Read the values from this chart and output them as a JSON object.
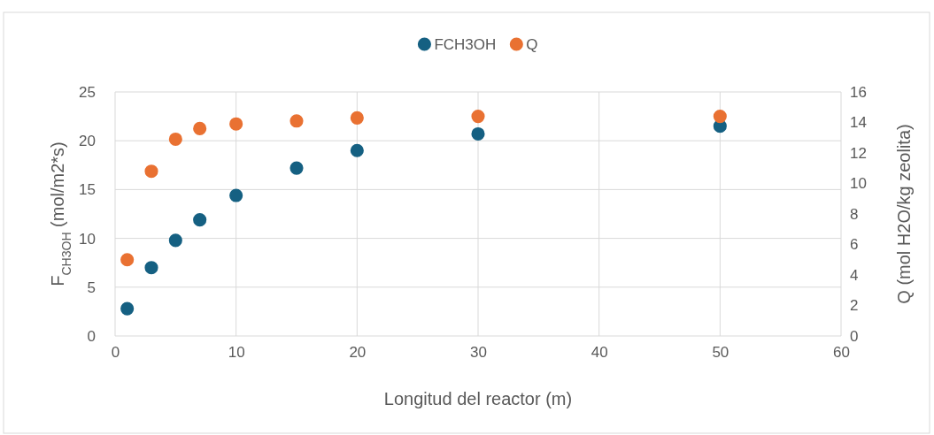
{
  "chart_data": {
    "type": "scatter",
    "xlabel": "Longitud del reactor (m)",
    "ylabel": "F$_{CH3OH}$ (mol/m2*s)",
    "y2label": "Q (mol H2O/kg zeolita)",
    "x": [
      1,
      3,
      5,
      7,
      10,
      15,
      20,
      30,
      50
    ],
    "series": [
      {
        "name": "FCH3OH",
        "color": "#156082",
        "values": [
          2.8,
          7.0,
          9.8,
          11.9,
          14.4,
          17.2,
          19.0,
          20.7,
          21.5
        ]
      },
      {
        "name": "Q",
        "color": "#e97132",
        "axis": "y2",
        "values": [
          5.0,
          10.8,
          12.9,
          13.6,
          13.9,
          14.1,
          14.3,
          14.4,
          14.4
        ]
      }
    ],
    "xlim": [
      0,
      60
    ],
    "xticks": [
      0,
      10,
      20,
      30,
      40,
      50,
      60
    ],
    "ylim": [
      0,
      25
    ],
    "yticks": [
      0,
      5,
      10,
      15,
      20,
      25
    ],
    "y2lim": [
      0,
      16
    ],
    "y2ticks": [
      0,
      2,
      4,
      6,
      8,
      10,
      12,
      14,
      16
    ],
    "grid": true,
    "legend": "top",
    "marker": "circle"
  }
}
